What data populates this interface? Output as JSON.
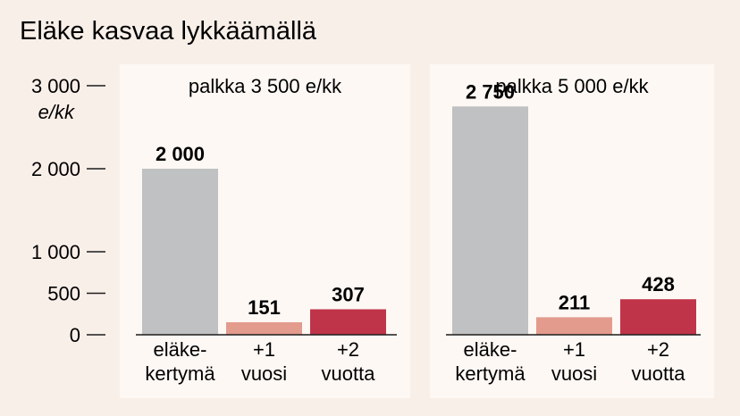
{
  "colors": {
    "background": "#f9efe9",
    "panel": "#fdf8f4",
    "base_bar": "#bfc1c2",
    "plus1_bar": "#e39b8d",
    "plus2_bar": "#c0344a",
    "text": "#1c1c1c"
  },
  "chart_data": {
    "type": "bar",
    "title": "Eläke kasvaa lykkäämällä",
    "ylabel": "e/kk",
    "ylim": [
      0,
      3000
    ],
    "yticks": [
      0,
      500,
      1000,
      2000,
      3000
    ],
    "ytick_labels": [
      "0",
      "500",
      "1 000",
      "2 000",
      "3 000"
    ],
    "categories": [
      "eläke-\nkertymä",
      "+1\nvuosi",
      "+2\nvuotta"
    ],
    "panels": [
      {
        "title": "palkka 3 500 e/kk",
        "values": [
          2000,
          151,
          307
        ],
        "value_labels": [
          "2 000",
          "151",
          "307"
        ]
      },
      {
        "title": "palkka 5 000 e/kk",
        "values": [
          2750,
          211,
          428
        ],
        "value_labels": [
          "2 750",
          "211",
          "428"
        ]
      }
    ]
  }
}
